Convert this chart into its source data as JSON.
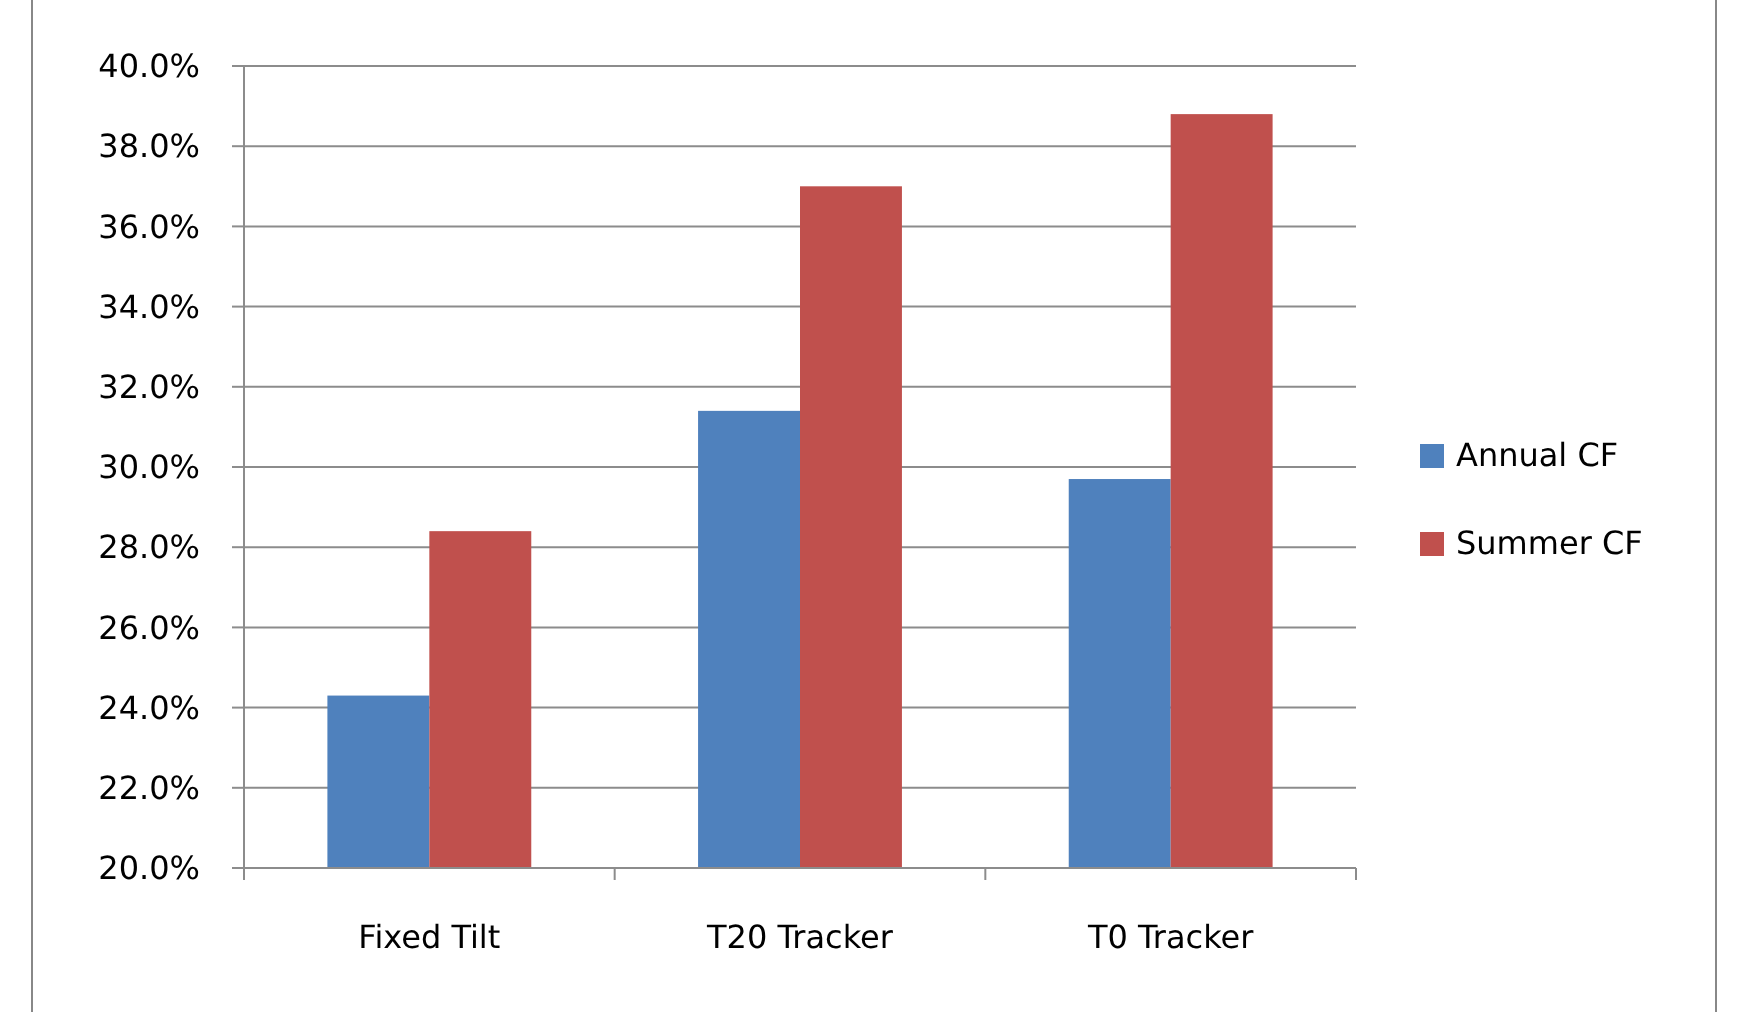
{
  "chart_data": {
    "type": "bar",
    "categories": [
      "Fixed Tilt",
      "T20 Tracker",
      "T0 Tracker"
    ],
    "series": [
      {
        "name": "Annual CF",
        "color": "#4f81bd",
        "values": [
          24.3,
          31.4,
          29.7
        ]
      },
      {
        "name": "Summer CF",
        "color": "#c0504d",
        "values": [
          28.4,
          37.0,
          38.8
        ]
      }
    ],
    "ylim": [
      20,
      40
    ],
    "yticks": [
      {
        "value": 20,
        "label": "20.0%"
      },
      {
        "value": 22,
        "label": "22.0%"
      },
      {
        "value": 24,
        "label": "24.0%"
      },
      {
        "value": 26,
        "label": "26.0%"
      },
      {
        "value": 28,
        "label": "28.0%"
      },
      {
        "value": 30,
        "label": "30.0%"
      },
      {
        "value": 32,
        "label": "32.0%"
      },
      {
        "value": 34,
        "label": "34.0%"
      },
      {
        "value": 36,
        "label": "36.0%"
      },
      {
        "value": 38,
        "label": "38.0%"
      },
      {
        "value": 40,
        "label": "40.0%"
      }
    ],
    "grid": "y",
    "legend": "right"
  }
}
